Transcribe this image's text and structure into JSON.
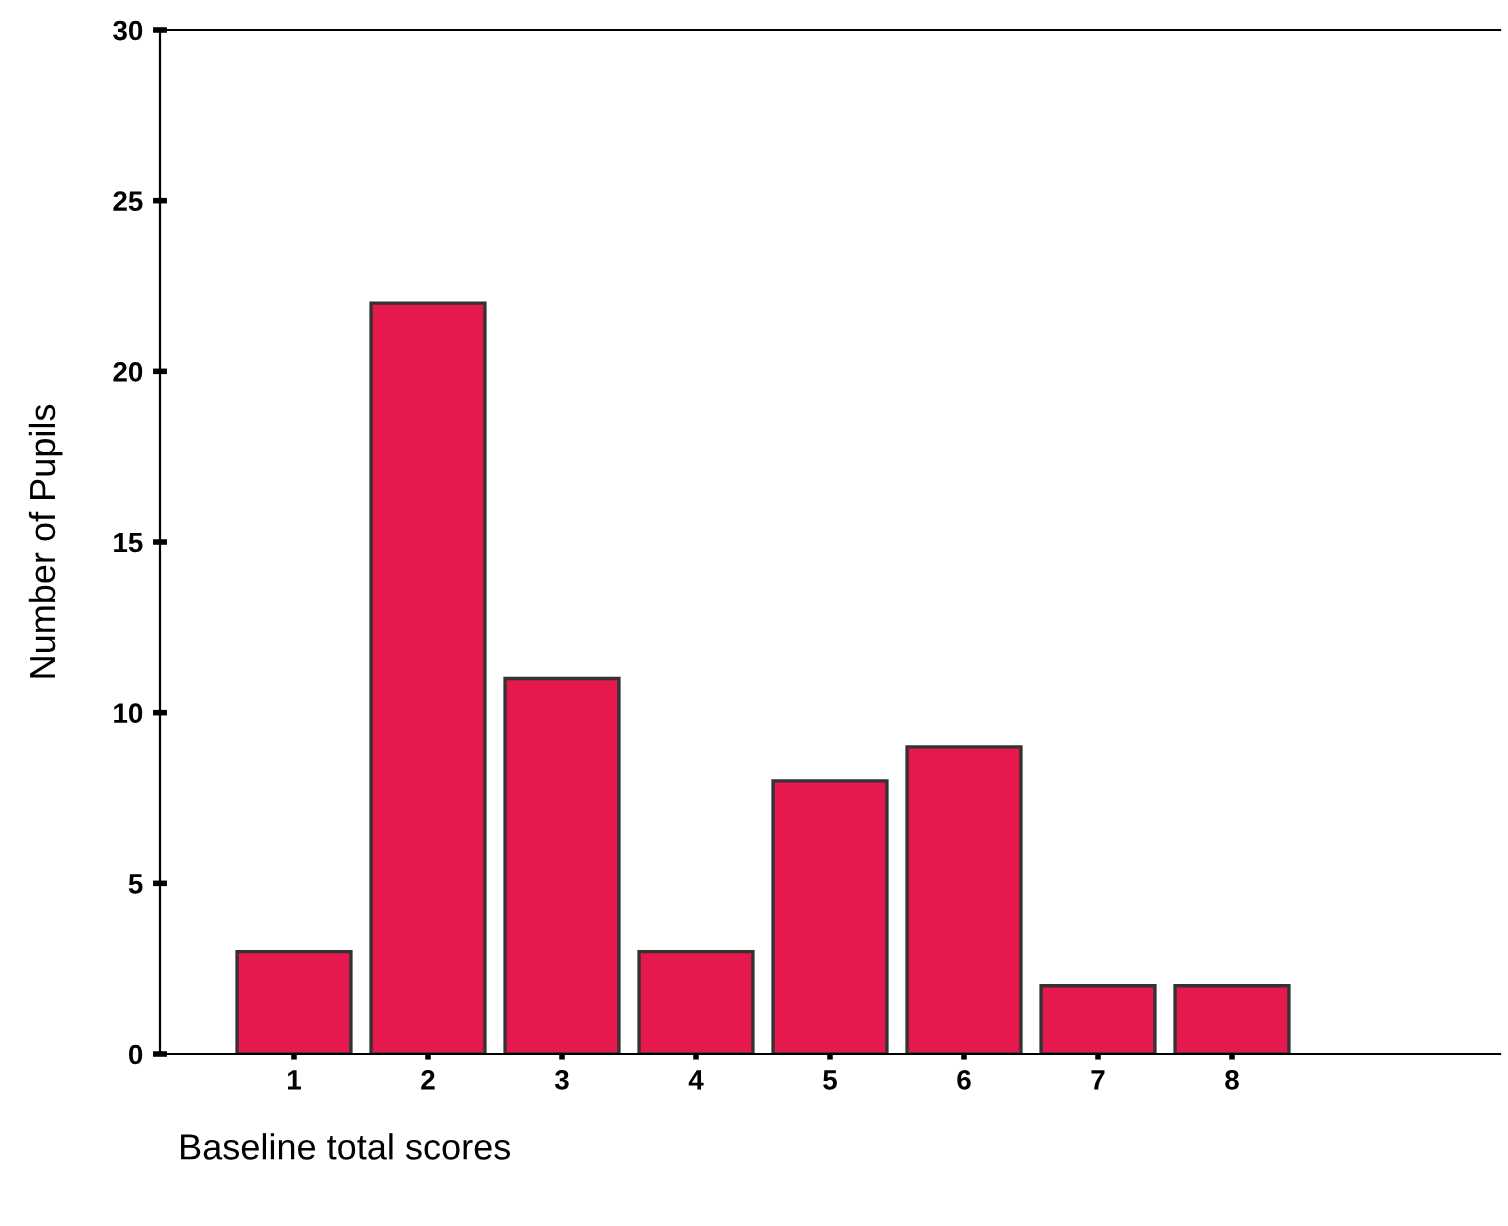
{
  "chart_data": {
    "type": "bar",
    "xlabel": "Baseline total scores",
    "ylabel": "Number of Pupils",
    "categories": [
      "1",
      "2",
      "3",
      "4",
      "5",
      "6",
      "7",
      "8"
    ],
    "values": [
      3,
      22,
      11,
      3,
      8,
      9,
      2,
      2
    ],
    "color": "#e5194d",
    "ylim": [
      0,
      30
    ],
    "yticks": [
      0,
      5,
      10,
      15,
      20,
      25,
      30
    ],
    "grid": false,
    "legend": false
  }
}
